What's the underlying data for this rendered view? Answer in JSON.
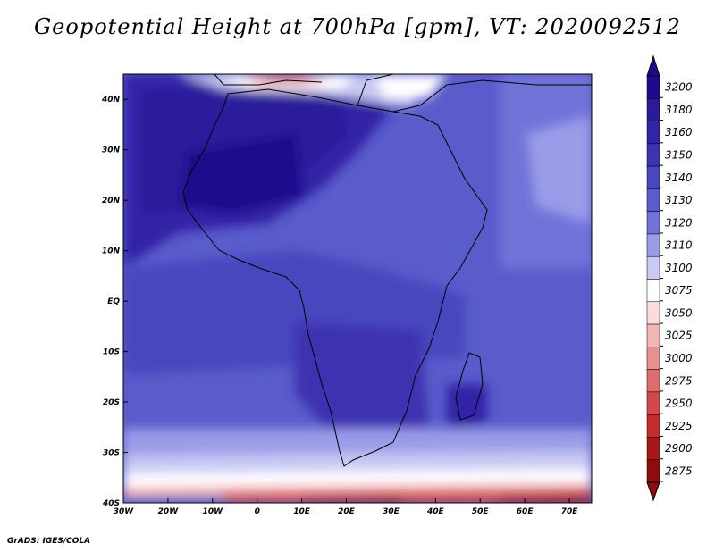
{
  "title": "Geopotential Height at 700hPa [gpm], VT: 2020092512",
  "credit": "GrADS: IGES/COLA",
  "colorbar": {
    "levels": [
      "3200",
      "3180",
      "3160",
      "3150",
      "3140",
      "3130",
      "3120",
      "3110",
      "3100",
      "3075",
      "3050",
      "3025",
      "3000",
      "2975",
      "2950",
      "2925",
      "2900",
      "2875"
    ],
    "colors": [
      "#1d0a8c",
      "#2b1a9a",
      "#3324a6",
      "#3c33b0",
      "#4a46bd",
      "#5a5ccb",
      "#7273d9",
      "#9a9ce8",
      "#c8c9f4",
      "#ffffff",
      "#fadcdc",
      "#f3b5b5",
      "#e98f8f",
      "#df6c6c",
      "#d34848",
      "#c42b2b",
      "#a81818",
      "#8c0d0d"
    ]
  },
  "axes": {
    "lon_labels": [
      "30W",
      "20W",
      "10W",
      "0",
      "10E",
      "20E",
      "30E",
      "40E",
      "50E",
      "60E",
      "70E"
    ],
    "lat_labels": [
      "40N",
      "30N",
      "20N",
      "10N",
      "EQ",
      "10S",
      "20S",
      "30S",
      "40S"
    ],
    "lon_range": [
      -30,
      75
    ],
    "lat_range": [
      -40,
      45
    ]
  },
  "chart_data": {
    "type": "heatmap",
    "title": "Geopotential Height at 700hPa [gpm], VT: 2020092512",
    "variable": "Geopotential Height",
    "units": "gpm",
    "level": "700hPa",
    "valid_time": "2020092512",
    "x_range": [
      -30,
      75
    ],
    "y_range": [
      -40,
      45
    ],
    "contour_levels": [
      2875,
      2900,
      2925,
      2950,
      2975,
      3000,
      3025,
      3050,
      3075,
      3100,
      3110,
      3120,
      3130,
      3140,
      3150,
      3160,
      3180,
      3200
    ]
  }
}
